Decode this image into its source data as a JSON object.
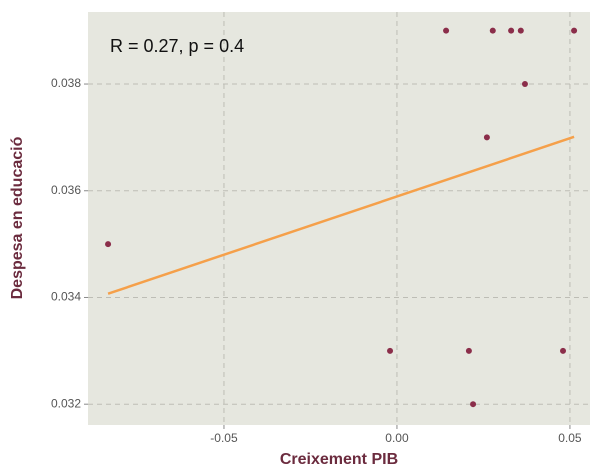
{
  "chart_data": {
    "type": "scatter",
    "annotation": "R = 0.27, p = 0.4",
    "xlabel": "Creixement PIB",
    "ylabel": "Despesa en educació",
    "x": [
      -0.0835,
      -0.002,
      0.0142,
      0.0208,
      0.022,
      0.026,
      0.0277,
      0.033,
      0.0358,
      0.037,
      0.048,
      0.0512
    ],
    "values": [
      0.035,
      0.033,
      0.039,
      0.033,
      0.032,
      0.037,
      0.039,
      0.039,
      0.039,
      0.038,
      0.033,
      0.039
    ],
    "color": "#8b2e4a",
    "fit": {
      "x": [
        -0.0835,
        0.0512
      ],
      "values": [
        0.03407,
        0.03701
      ],
      "color": "#f5a04a"
    },
    "xlim": [
      -0.0893,
      0.0558
    ],
    "ylim": [
      0.03161,
      0.03935
    ],
    "xticks": [
      {
        "value": -0.05,
        "label": "-0.05"
      },
      {
        "value": 0,
        "label": "0.00"
      },
      {
        "value": 0.05,
        "label": "0.05"
      }
    ],
    "yticks": [
      0.032,
      0.034,
      0.036,
      0.038
    ],
    "grid": true
  }
}
